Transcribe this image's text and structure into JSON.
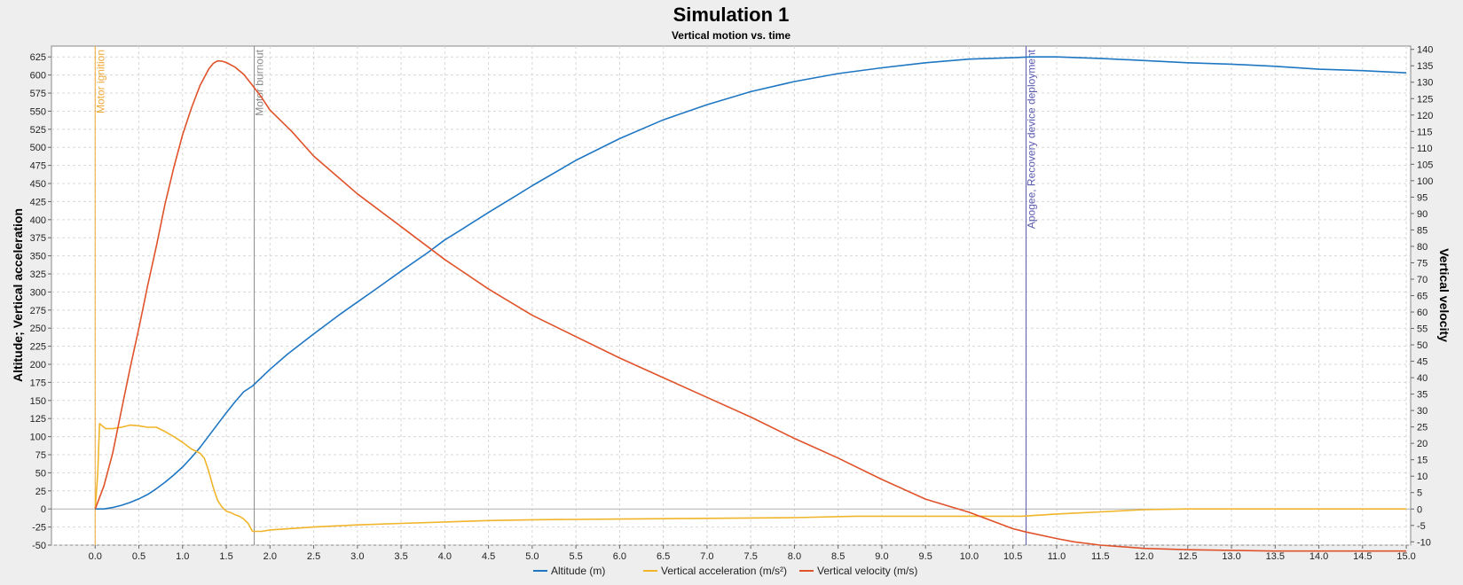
{
  "chart_data": {
    "type": "line",
    "title": "Simulation 1",
    "subtitle": "Vertical motion vs. time",
    "xlabel": "",
    "ylabel_left": "Altitude; Vertical acceleration",
    "ylabel_right": "Vertical velocity",
    "xlim": [
      -0.5,
      15.05
    ],
    "ylim_left": [
      -50,
      640
    ],
    "ylim_right": [
      -11,
      141
    ],
    "x_ticks": [
      "0.0",
      "0.5",
      "1.0",
      "1.5",
      "2.0",
      "2.5",
      "3.0",
      "3.5",
      "4.0",
      "4.5",
      "5.0",
      "5.5",
      "6.0",
      "6.5",
      "7.0",
      "7.5",
      "8.0",
      "8.5",
      "9.0",
      "9.5",
      "10.0",
      "10.5",
      "11.0",
      "11.5",
      "12.0",
      "12.5",
      "13.0",
      "13.5",
      "14.0",
      "14.5",
      "15.0"
    ],
    "y_left_ticks": [
      "-50",
      "-25",
      "0",
      "25",
      "50",
      "75",
      "100",
      "125",
      "150",
      "175",
      "200",
      "225",
      "250",
      "275",
      "300",
      "325",
      "350",
      "375",
      "400",
      "425",
      "450",
      "475",
      "500",
      "525",
      "550",
      "575",
      "600",
      "625"
    ],
    "y_right_ticks": [
      "-10",
      "-5",
      "0",
      "5",
      "10",
      "15",
      "20",
      "25",
      "30",
      "35",
      "40",
      "45",
      "50",
      "55",
      "60",
      "65",
      "70",
      "75",
      "80",
      "85",
      "90",
      "95",
      "100",
      "105",
      "110",
      "115",
      "120",
      "125",
      "130",
      "135",
      "140"
    ],
    "grid": true,
    "legend_position": "bottom",
    "events": [
      {
        "label": "Motor ignition",
        "x": 0.0,
        "color": "#f0a838"
      },
      {
        "label": "Motor burnout",
        "x": 1.82,
        "color": "#8a8a8a"
      },
      {
        "label": "Apogee, Recovery device deployment",
        "x": 10.65,
        "color": "#5a5ab0"
      }
    ],
    "series": [
      {
        "name": "Altitude (m)",
        "axis": "left",
        "color": "#1f77c4",
        "x": [
          0.0,
          0.1,
          0.2,
          0.3,
          0.4,
          0.5,
          0.6,
          0.7,
          0.8,
          0.9,
          1.0,
          1.1,
          1.2,
          1.3,
          1.4,
          1.5,
          1.6,
          1.7,
          1.8,
          2.0,
          2.2,
          2.5,
          2.8,
          3.0,
          3.2,
          3.5,
          3.8,
          4.0,
          4.2,
          4.5,
          4.8,
          5.0,
          5.5,
          6.0,
          6.5,
          7.0,
          7.5,
          8.0,
          8.5,
          9.0,
          9.5,
          10.0,
          10.5,
          10.7,
          11.0,
          11.5,
          12.0,
          12.5,
          13.0,
          13.5,
          14.0,
          14.5,
          15.0
        ],
        "y": [
          0,
          0,
          2,
          5,
          9,
          14,
          20,
          28,
          37,
          47,
          58,
          71,
          85,
          101,
          117,
          133,
          148,
          162,
          170,
          193,
          214,
          242,
          269,
          286,
          303,
          329,
          354,
          372,
          387,
          410,
          432,
          447,
          482,
          512,
          538,
          559,
          577,
          591,
          602,
          610,
          617,
          622,
          624,
          625,
          625,
          623,
          620,
          617,
          615,
          612,
          608,
          606,
          603
        ]
      },
      {
        "name": "Vertical acceleration (m/s²)",
        "axis": "left",
        "color": "#f0b52a",
        "x": [
          0.0,
          0.03,
          0.05,
          0.08,
          0.12,
          0.2,
          0.3,
          0.4,
          0.5,
          0.6,
          0.7,
          0.8,
          0.9,
          1.0,
          1.1,
          1.15,
          1.2,
          1.25,
          1.3,
          1.35,
          1.4,
          1.45,
          1.5,
          1.55,
          1.6,
          1.65,
          1.7,
          1.75,
          1.8,
          1.9,
          2.0,
          2.5,
          3.0,
          3.5,
          4.0,
          4.5,
          5.0,
          6.0,
          7.0,
          8.0,
          8.7,
          10.0,
          10.6,
          11.0,
          11.5,
          12.0,
          12.5,
          13.0,
          14.0,
          15.0
        ],
        "y": [
          0,
          50,
          118,
          115,
          111,
          111,
          113,
          116,
          115,
          113,
          113,
          107,
          100,
          92,
          83,
          80,
          77,
          70,
          52,
          30,
          12,
          3,
          -3,
          -5,
          -8,
          -10,
          -14,
          -20,
          -31,
          -31,
          -29,
          -25,
          -22,
          -20,
          -18,
          -16,
          -15,
          -14,
          -13,
          -12,
          -10,
          -10,
          -10,
          -7,
          -4,
          -1,
          0,
          0,
          0,
          0
        ]
      },
      {
        "name": "Vertical velocity (m/s)",
        "axis": "right",
        "color": "#e0522a",
        "x": [
          0.0,
          0.1,
          0.2,
          0.3,
          0.4,
          0.5,
          0.6,
          0.7,
          0.8,
          0.9,
          1.0,
          1.1,
          1.2,
          1.3,
          1.35,
          1.4,
          1.45,
          1.5,
          1.6,
          1.7,
          1.8,
          1.9,
          2.0,
          2.25,
          2.5,
          3.0,
          3.5,
          4.0,
          4.5,
          5.0,
          5.5,
          6.0,
          6.5,
          7.0,
          7.5,
          8.0,
          8.5,
          9.0,
          9.5,
          10.0,
          10.5,
          10.65,
          11.0,
          11.2,
          11.5,
          12.0,
          12.5,
          13.0,
          13.5,
          14.0,
          15.0
        ],
        "y": [
          0,
          7,
          17,
          30,
          43,
          55,
          68,
          80,
          93,
          104,
          114,
          122,
          129,
          134,
          135.7,
          136.5,
          136.4,
          136,
          134.6,
          132.4,
          129,
          125.5,
          121.5,
          115,
          107.5,
          96,
          86,
          76,
          67,
          59,
          52.5,
          46,
          40,
          34,
          28,
          21.5,
          15.5,
          9,
          3,
          -1,
          -6,
          -7,
          -9,
          -10,
          -11,
          -12,
          -12.4,
          -12.6,
          -12.8,
          -12.8,
          -12.8
        ]
      }
    ]
  }
}
